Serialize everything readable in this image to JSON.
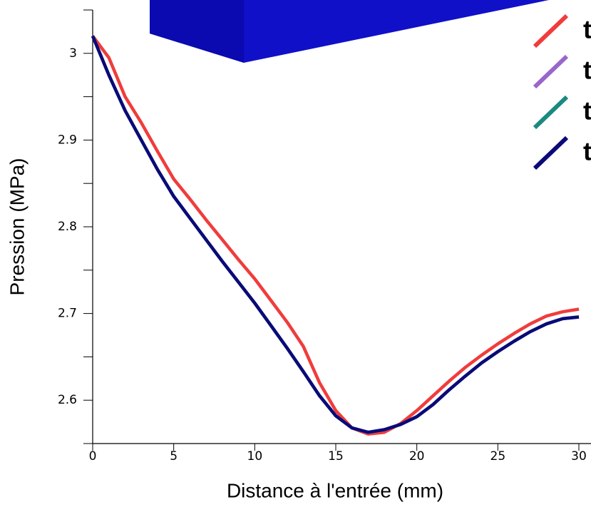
{
  "chart_data": {
    "type": "line",
    "x_label": "Distance à l'entrée (mm)",
    "y_label": "Pression (MPa)",
    "x": [
      0,
      1,
      2,
      3,
      4,
      5,
      6,
      7,
      8,
      9,
      10,
      11,
      12,
      13,
      14,
      15,
      16,
      17,
      18,
      19,
      20,
      21,
      22,
      23,
      24,
      25,
      26,
      27,
      28,
      29,
      30
    ],
    "series": [
      {
        "name": "t",
        "color": "#f03c3c",
        "values": [
          3.02,
          2.995,
          2.95,
          2.92,
          2.887,
          2.855,
          2.832,
          2.808,
          2.785,
          2.762,
          2.74,
          2.715,
          2.69,
          2.662,
          2.62,
          2.588,
          2.568,
          2.561,
          2.563,
          2.573,
          2.588,
          2.605,
          2.622,
          2.638,
          2.652,
          2.665,
          2.677,
          2.688,
          2.697,
          2.702,
          2.705
        ]
      },
      {
        "name": "t",
        "color": "#9966cc",
        "values": [
          3.02,
          2.975,
          2.934,
          2.9,
          2.866,
          2.835,
          2.81,
          2.785,
          2.76,
          2.736,
          2.712,
          2.686,
          2.66,
          2.633,
          2.605,
          2.582,
          2.568,
          2.563,
          2.566,
          2.572,
          2.581,
          2.595,
          2.612,
          2.628,
          2.643,
          2.656,
          2.668,
          2.679,
          2.688,
          2.694,
          2.696
        ]
      },
      {
        "name": "t",
        "color": "#1a8a80",
        "values": [
          3.02,
          2.975,
          2.934,
          2.9,
          2.866,
          2.835,
          2.81,
          2.785,
          2.76,
          2.736,
          2.712,
          2.686,
          2.66,
          2.633,
          2.605,
          2.582,
          2.568,
          2.563,
          2.566,
          2.572,
          2.581,
          2.595,
          2.612,
          2.628,
          2.643,
          2.656,
          2.668,
          2.679,
          2.688,
          2.694,
          2.696
        ]
      },
      {
        "name": "t",
        "color": "#0a0a78",
        "values": [
          3.02,
          2.975,
          2.934,
          2.9,
          2.866,
          2.835,
          2.81,
          2.785,
          2.76,
          2.736,
          2.712,
          2.686,
          2.66,
          2.633,
          2.605,
          2.582,
          2.568,
          2.563,
          2.566,
          2.572,
          2.581,
          2.595,
          2.612,
          2.628,
          2.643,
          2.656,
          2.668,
          2.679,
          2.688,
          2.694,
          2.696
        ]
      }
    ],
    "xlim": [
      0,
      30
    ],
    "xticks": [
      0,
      5,
      10,
      15,
      20,
      25,
      30
    ],
    "ylim": [
      2.55,
      3.05
    ],
    "yticks": [
      2.6,
      2.7,
      2.8,
      2.9,
      3
    ],
    "y_minor_ticks": [
      2.55,
      2.65,
      2.75,
      2.85,
      2.95,
      3.05
    ],
    "legend": "top-right",
    "grid": false
  }
}
